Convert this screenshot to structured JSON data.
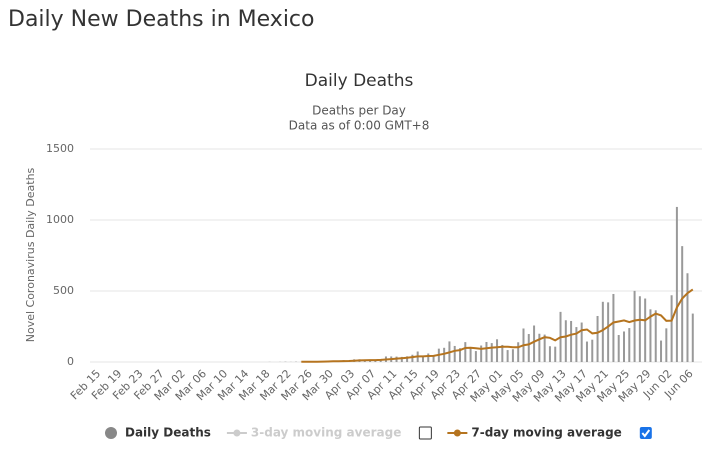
{
  "page_title": "Daily New Deaths in Mexico",
  "chart_data": {
    "type": "bar",
    "title": "Daily Deaths",
    "subtitle": [
      "Deaths per Day",
      "Data as of 0:00 GMT+8"
    ],
    "y_label": "Novel Coronavirus Daily Deaths",
    "categories": [
      "Feb 15",
      null,
      null,
      null,
      "Feb 19",
      null,
      null,
      null,
      "Feb 23",
      null,
      null,
      null,
      "Feb 27",
      null,
      null,
      null,
      "Mar 02",
      null,
      null,
      null,
      "Mar 06",
      null,
      null,
      null,
      "Mar 10",
      null,
      null,
      null,
      "Mar 14",
      null,
      null,
      null,
      "Mar 18",
      null,
      null,
      null,
      "Mar 22",
      null,
      null,
      null,
      "Mar 26",
      null,
      null,
      null,
      "Mar 30",
      null,
      null,
      null,
      "Apr 03",
      null,
      null,
      null,
      "Apr 07",
      null,
      null,
      null,
      "Apr 11",
      null,
      null,
      null,
      "Apr 15",
      null,
      null,
      null,
      "Apr 19",
      null,
      null,
      null,
      "Apr 23",
      null,
      null,
      null,
      "Apr 27",
      null,
      null,
      null,
      "May 01",
      null,
      null,
      null,
      "May 05",
      null,
      null,
      null,
      "May 09",
      null,
      null,
      null,
      "May 13",
      null,
      null,
      null,
      "May 17",
      null,
      null,
      null,
      "May 21",
      null,
      null,
      null,
      "May 25",
      null,
      null,
      null,
      "May 29",
      null,
      null,
      null,
      "Jun 02",
      null,
      null,
      null,
      "Jun 06",
      null
    ],
    "series": [
      {
        "name": "Daily Deaths",
        "type": "bar",
        "color": "#999999",
        "legend_marker_color": "#888888",
        "values": [
          0,
          0,
          0,
          0,
          0,
          0,
          0,
          0,
          0,
          0,
          0,
          0,
          0,
          0,
          0,
          0,
          0,
          0,
          0,
          0,
          0,
          0,
          0,
          0,
          0,
          0,
          0,
          0,
          0,
          0,
          0,
          0,
          0,
          1,
          0,
          1,
          2,
          1,
          2,
          1,
          4,
          4,
          4,
          4,
          8,
          8,
          8,
          13,
          10,
          19,
          19,
          15,
          16,
          16,
          19,
          39,
          39,
          38,
          36,
          40,
          51,
          74,
          37,
          60,
          39,
          94,
          100,
          145,
          113,
          97,
          140,
          103,
          77,
          116,
          141,
          133,
          160,
          120,
          84,
          90,
          139,
          236,
          197,
          257,
          199,
          193,
          111,
          108,
          353,
          294,
          289,
          246,
          278,
          144,
          157,
          324,
          424,
          420,
          479,
          190,
          215,
          239,
          501,
          463,
          447,
          371,
          364,
          151,
          237,
          470,
          1092,
          816,
          625,
          341
        ]
      },
      {
        "name": "3-day moving average",
        "type": "line",
        "color": "#cccccc",
        "visible": false,
        "checked": false
      },
      {
        "name": "7-day moving average",
        "type": "line",
        "color": "#b5741f",
        "visible": true,
        "checked": true,
        "values": [
          null,
          null,
          null,
          null,
          null,
          null,
          null,
          null,
          null,
          null,
          null,
          null,
          null,
          null,
          null,
          null,
          null,
          null,
          null,
          null,
          null,
          null,
          null,
          null,
          null,
          null,
          null,
          null,
          null,
          null,
          null,
          null,
          null,
          null,
          null,
          null,
          null,
          null,
          null,
          1.1,
          1.6,
          2.0,
          2.3,
          2.7,
          3.6,
          4.6,
          5.1,
          6.4,
          7.3,
          9.4,
          11,
          12,
          13.1,
          13.6,
          14.9,
          17.7,
          20.6,
          23.9,
          26.7,
          30.1,
          34.7,
          39.7,
          39.4,
          42.6,
          43,
          50.7,
          57.7,
          67.9,
          78.7,
          84,
          98.4,
          99.7,
          96.4,
          92.3,
          96.3,
          101.4,
          104.3,
          106.7,
          107.7,
          104,
          103.7,
          118.4,
          123.7,
          143.3,
          159.7,
          174.4,
          170.4,
          152.1,
          174.4,
          179.7,
          192.6,
          200.1,
          224,
          229.1,
          201.1,
          205.4,
          224.7,
          249.6,
          278.3,
          284.9,
          293.1,
          281,
          292,
          298.1,
          293.6,
          319.4,
          340.7,
          328.1,
          290.4,
          291.4,
          383.6,
          447.1,
          484.4,
          511.6
        ]
      }
    ],
    "ylim": [
      0,
      1500
    ],
    "yticks": [
      0,
      500,
      1000,
      1500
    ],
    "grid": true
  }
}
